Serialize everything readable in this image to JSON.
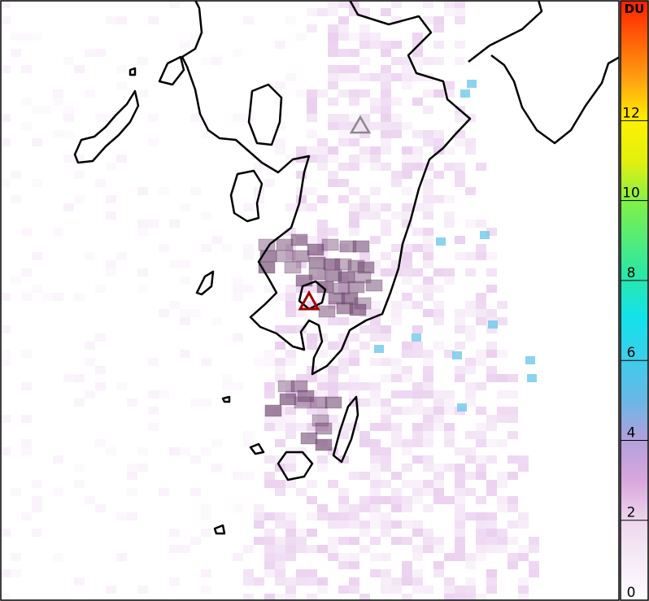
{
  "colorbar": {
    "title": "DU",
    "lim": [
      0,
      15
    ],
    "ticks": [
      0,
      2,
      4,
      6,
      8,
      10,
      12
    ]
  }
}
